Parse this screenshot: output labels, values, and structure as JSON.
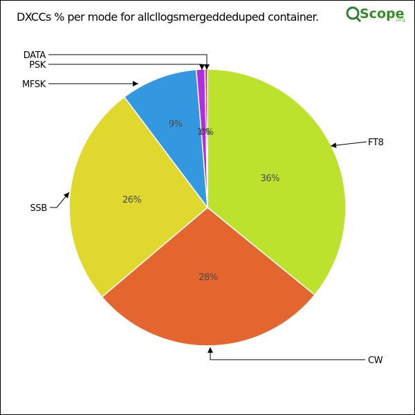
{
  "chart_data": {
    "type": "pie",
    "title": "DXCCs % per mode for allcllogsmergeddeduped container.",
    "slices": [
      {
        "label": "FT8",
        "value": 36,
        "pct_label": "36%",
        "color": "#bde22e"
      },
      {
        "label": "CW",
        "value": 28,
        "pct_label": "28%",
        "color": "#e3662f"
      },
      {
        "label": "SSB",
        "value": 26,
        "pct_label": "26%",
        "color": "#e0d82f"
      },
      {
        "label": "MFSK",
        "value": 9,
        "pct_label": "9%",
        "color": "#3398e0"
      },
      {
        "label": "PSK",
        "value": 1,
        "pct_label": "1%",
        "color": "#b02ee0"
      },
      {
        "label": "DATA",
        "value": 0.3,
        "pct_label": "0%",
        "color": "#e0306a"
      }
    ],
    "legend": "callout labels"
  },
  "logo": {
    "text_main": "Scope",
    "text_suffix": ".org",
    "colors": {
      "green": "#3a8a2a",
      "accent": "#6cc24a"
    }
  }
}
